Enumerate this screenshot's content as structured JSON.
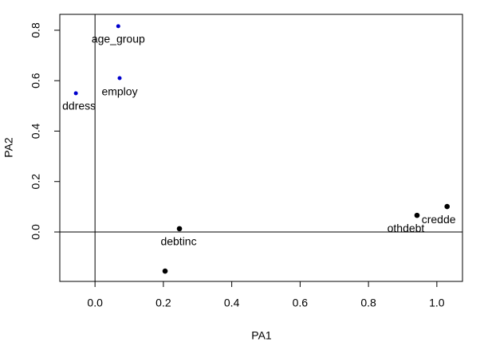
{
  "chart_data": {
    "type": "scatter",
    "xlabel": "PA1",
    "ylabel": "PA2",
    "xlim": [
      -0.103,
      1.075
    ],
    "ylim": [
      -0.196,
      0.863
    ],
    "xticks": [
      {
        "value": 0,
        "label": "0.0"
      },
      {
        "value": 0.2,
        "label": "0.2"
      },
      {
        "value": 0.4,
        "label": "0.4"
      },
      {
        "value": 0.6,
        "label": "0.6"
      },
      {
        "value": 0.8,
        "label": "0.8"
      },
      {
        "value": 1,
        "label": "1.0"
      }
    ],
    "yticks": [
      {
        "value": 0,
        "label": "0.0"
      },
      {
        "value": 0.2,
        "label": "0.2"
      },
      {
        "value": 0.4,
        "label": "0.4"
      },
      {
        "value": 0.6,
        "label": "0.6"
      },
      {
        "value": 0.8,
        "label": "0.8"
      }
    ],
    "reference_lines": {
      "x": 0,
      "y": 0
    },
    "series": [
      {
        "color": "#0000cd",
        "x": [
          0.068,
          0.072,
          -0.056
        ],
        "values": [
          0.816,
          0.61,
          0.55
        ],
        "labels": [
          "age_group",
          "employ",
          "ddress"
        ]
      },
      {
        "color": "#000000",
        "x": [
          0.247,
          0.205,
          0.942,
          1.03
        ],
        "values": [
          0.013,
          -0.155,
          0.066,
          0.101
        ],
        "labels": [
          "debtinc",
          null,
          "othdebt",
          "credde"
        ]
      }
    ]
  }
}
